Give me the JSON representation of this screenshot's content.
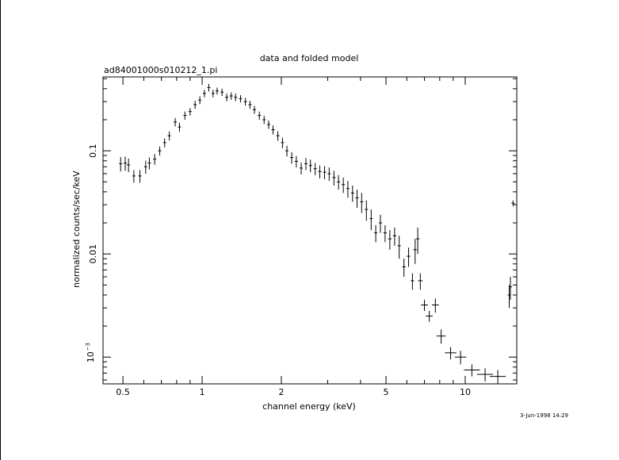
{
  "chart_data": {
    "type": "scatter",
    "title": "data and folded model",
    "subtitle": "ad84001000s010212_1.pi",
    "xlabel": "channel energy (keV)",
    "ylabel": "normalized counts/sec/keV",
    "timestamp": "3-Jun-1998 14:29",
    "x_scale": "log",
    "y_scale": "log",
    "xlim": [
      0.42,
      15.7
    ],
    "ylim": [
      0.00055,
      0.52
    ],
    "x_ticks": [
      "0.5",
      "1",
      "2",
      "5",
      "10"
    ],
    "y_ticks": [
      {
        "value": 0.1,
        "label": "0.1"
      },
      {
        "value": 0.01,
        "label": "0.01"
      },
      {
        "value": 0.001,
        "label": "10",
        "exponent": "−3"
      }
    ],
    "grid": false,
    "series": [
      {
        "points": [
          [
            0.49,
            0.075,
            0.01,
            0.012
          ],
          [
            0.51,
            0.076,
            0.01,
            0.012
          ],
          [
            0.525,
            0.073,
            0.01,
            0.011
          ],
          [
            0.55,
            0.057,
            0.012,
            0.008
          ],
          [
            0.58,
            0.057,
            0.012,
            0.008
          ],
          [
            0.61,
            0.07,
            0.01,
            0.01
          ],
          [
            0.63,
            0.076,
            0.01,
            0.01
          ],
          [
            0.66,
            0.083,
            0.01,
            0.01
          ],
          [
            0.69,
            0.1,
            0.01,
            0.01
          ],
          [
            0.72,
            0.12,
            0.01,
            0.012
          ],
          [
            0.75,
            0.14,
            0.01,
            0.014
          ],
          [
            0.79,
            0.19,
            0.01,
            0.018
          ],
          [
            0.82,
            0.17,
            0.01,
            0.017
          ],
          [
            0.86,
            0.22,
            0.01,
            0.02
          ],
          [
            0.9,
            0.24,
            0.01,
            0.02
          ],
          [
            0.94,
            0.28,
            0.01,
            0.025
          ],
          [
            0.98,
            0.31,
            0.01,
            0.027
          ],
          [
            1.02,
            0.36,
            0.01,
            0.03
          ],
          [
            1.06,
            0.41,
            0.012,
            0.035
          ],
          [
            1.1,
            0.36,
            0.012,
            0.03
          ],
          [
            1.14,
            0.38,
            0.012,
            0.03
          ],
          [
            1.19,
            0.37,
            0.012,
            0.03
          ],
          [
            1.24,
            0.33,
            0.012,
            0.028
          ],
          [
            1.29,
            0.34,
            0.012,
            0.028
          ],
          [
            1.34,
            0.33,
            0.012,
            0.028
          ],
          [
            1.4,
            0.32,
            0.012,
            0.026
          ],
          [
            1.46,
            0.3,
            0.012,
            0.026
          ],
          [
            1.52,
            0.28,
            0.012,
            0.025
          ],
          [
            1.58,
            0.25,
            0.012,
            0.022
          ],
          [
            1.65,
            0.22,
            0.012,
            0.02
          ],
          [
            1.72,
            0.2,
            0.012,
            0.018
          ],
          [
            1.79,
            0.18,
            0.012,
            0.017
          ],
          [
            1.86,
            0.16,
            0.012,
            0.016
          ],
          [
            1.94,
            0.14,
            0.012,
            0.015
          ],
          [
            2.02,
            0.12,
            0.012,
            0.014
          ],
          [
            2.1,
            0.1,
            0.012,
            0.012
          ],
          [
            2.19,
            0.086,
            0.012,
            0.011
          ],
          [
            2.28,
            0.079,
            0.012,
            0.01
          ],
          [
            2.38,
            0.068,
            0.012,
            0.009
          ],
          [
            2.48,
            0.075,
            0.012,
            0.01
          ],
          [
            2.58,
            0.072,
            0.012,
            0.01
          ],
          [
            2.69,
            0.067,
            0.012,
            0.009
          ],
          [
            2.8,
            0.063,
            0.012,
            0.009
          ],
          [
            2.92,
            0.062,
            0.012,
            0.009
          ],
          [
            3.04,
            0.06,
            0.012,
            0.009
          ],
          [
            3.17,
            0.055,
            0.012,
            0.009
          ],
          [
            3.3,
            0.05,
            0.012,
            0.008
          ],
          [
            3.44,
            0.047,
            0.012,
            0.008
          ],
          [
            3.58,
            0.043,
            0.012,
            0.008
          ],
          [
            3.73,
            0.039,
            0.012,
            0.007
          ],
          [
            3.88,
            0.035,
            0.012,
            0.007
          ],
          [
            4.04,
            0.032,
            0.012,
            0.007
          ],
          [
            4.21,
            0.027,
            0.012,
            0.006
          ],
          [
            4.39,
            0.022,
            0.012,
            0.005
          ],
          [
            4.57,
            0.016,
            0.012,
            0.003
          ],
          [
            4.76,
            0.02,
            0.012,
            0.004
          ],
          [
            4.96,
            0.016,
            0.015,
            0.003
          ],
          [
            5.17,
            0.014,
            0.015,
            0.003
          ],
          [
            5.39,
            0.015,
            0.015,
            0.003
          ],
          [
            5.61,
            0.012,
            0.015,
            0.003
          ],
          [
            5.85,
            0.0075,
            0.015,
            0.0015
          ],
          [
            6.09,
            0.0095,
            0.015,
            0.002
          ],
          [
            6.3,
            0.0055,
            0.015,
            0.001
          ],
          [
            6.45,
            0.011,
            0.015,
            0.003
          ],
          [
            6.6,
            0.014,
            0.015,
            0.004
          ],
          [
            6.75,
            0.0055,
            0.02,
            0.001
          ],
          [
            7.0,
            0.0032,
            0.03,
            0.0004
          ],
          [
            7.3,
            0.0025,
            0.03,
            0.0003
          ],
          [
            7.7,
            0.0032,
            0.03,
            0.0005
          ],
          [
            8.1,
            0.0016,
            0.04,
            0.00025
          ],
          [
            8.8,
            0.0011,
            0.05,
            0.00015
          ],
          [
            9.6,
            0.001,
            0.05,
            0.00015
          ],
          [
            10.6,
            0.00075,
            0.07,
            0.0001
          ],
          [
            11.9,
            0.00068,
            0.07,
            0.0001
          ],
          [
            13.3,
            0.00065,
            0.07,
            0.0001
          ],
          [
            14.7,
            0.004,
            0.01,
            0.001
          ],
          [
            14.85,
            0.0048,
            0.01,
            0.0012
          ],
          [
            15.2,
            0.031,
            0.005,
            0.002
          ]
        ]
      }
    ]
  }
}
